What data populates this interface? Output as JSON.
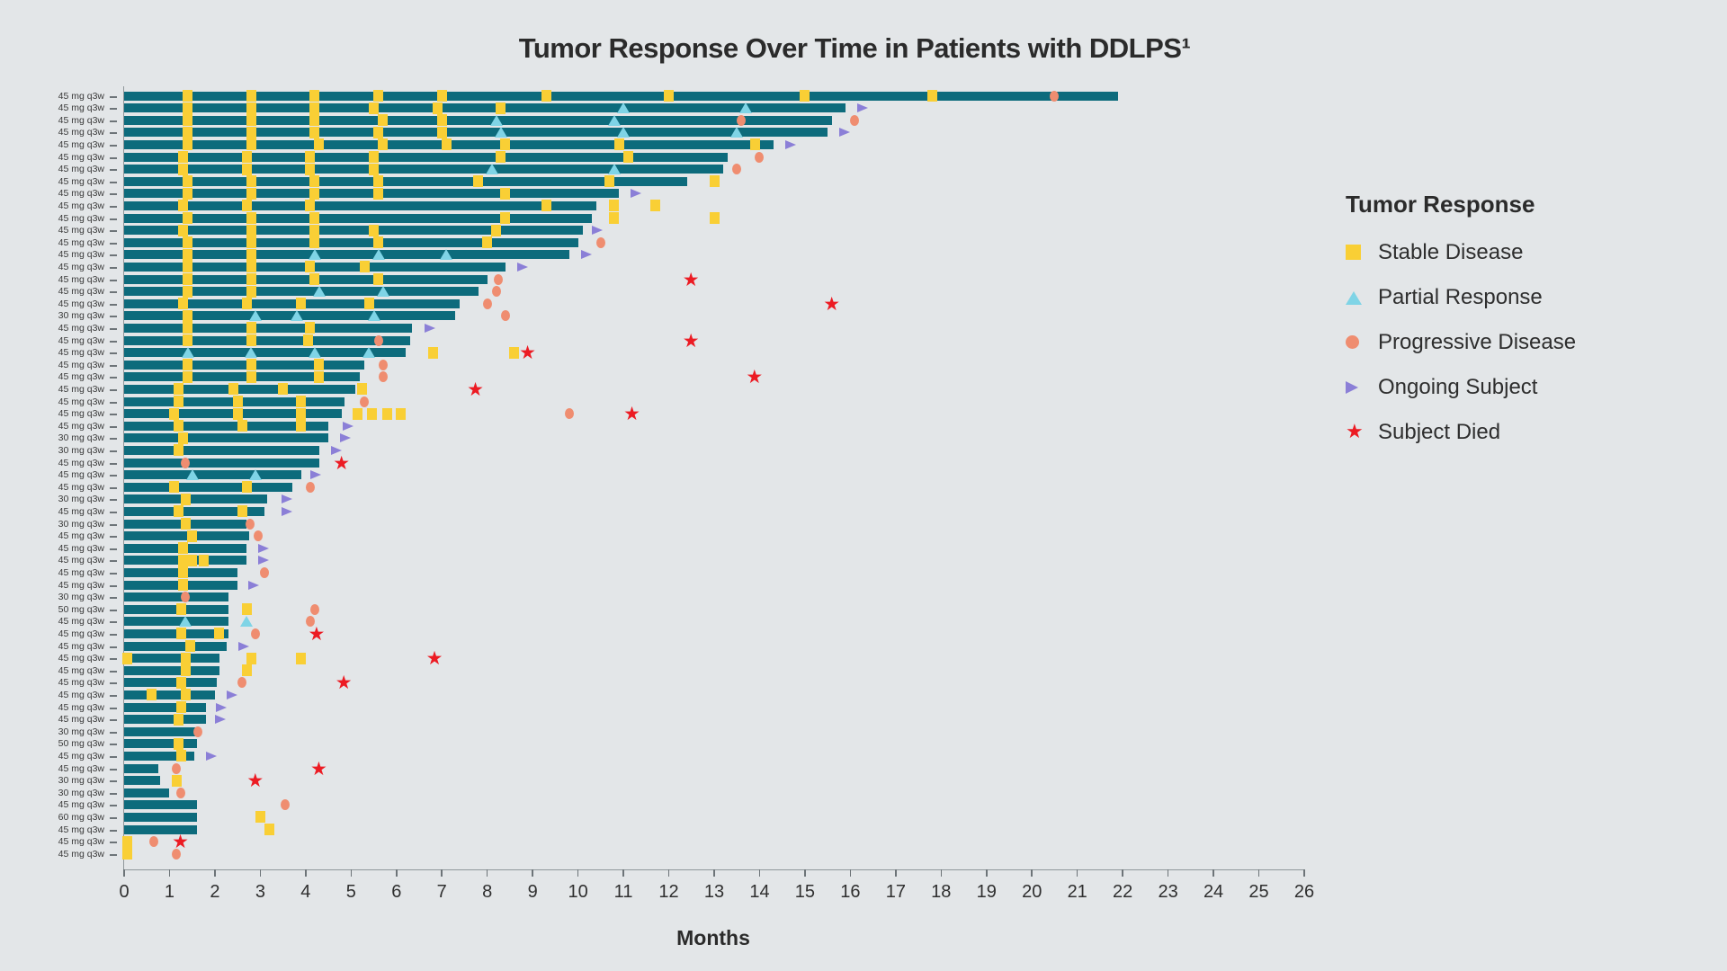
{
  "title": "Tumor Response Over Time in Patients with DDLPS¹",
  "x_axis": {
    "label": "Months",
    "ticks": [
      0,
      1,
      2,
      3,
      4,
      5,
      6,
      7,
      8,
      9,
      10,
      11,
      12,
      13,
      14,
      15,
      16,
      17,
      18,
      19,
      20,
      21,
      22,
      23,
      24,
      25,
      26
    ]
  },
  "legend": {
    "title": "Tumor Response",
    "items": [
      {
        "label": "Stable Disease",
        "marker": "square-icon",
        "color": "#f9cf35"
      },
      {
        "label": "Partial Response",
        "marker": "triangle-icon",
        "color": "#7fd4e6"
      },
      {
        "label": "Progressive Disease",
        "marker": "circle-icon",
        "color": "#ef8d70"
      },
      {
        "label": "Ongoing Subject",
        "marker": "arrow-icon",
        "color": "#8b7fd7"
      },
      {
        "label": "Subject Died",
        "marker": "star-icon",
        "color": "#ec1b23"
      }
    ]
  },
  "colors": {
    "background": "#e3e6e8",
    "bar": "#0d6b7c",
    "stable_disease": "#f9cf35",
    "partial_response": "#7fd4e6",
    "progressive_disease": "#ef8d70",
    "ongoing": "#8b7fd7",
    "died": "#ec1b23"
  },
  "chart_data": {
    "type": "swimmer-bar",
    "unit": "months",
    "xlim": [
      0,
      26
    ],
    "title": "Tumor Response Over Time in Patients with DDLPS¹",
    "xlabel": "Months",
    "legend_position": "right",
    "patients": [
      {
        "dose": "45 mg q3w",
        "end": 21.9,
        "sd": [
          1.4,
          2.8,
          4.2,
          5.6,
          7.0,
          9.3,
          12.0,
          15.0,
          17.8
        ],
        "pr": [],
        "pd": [
          20.5
        ],
        "ongoing": null,
        "died": null
      },
      {
        "dose": "45 mg q3w",
        "end": 15.9,
        "sd": [
          1.4,
          2.8,
          4.2,
          5.5,
          6.9,
          8.3
        ],
        "pr": [
          11.0,
          13.7
        ],
        "pd": [],
        "ongoing": 16.2,
        "died": null
      },
      {
        "dose": "45 mg q3w",
        "end": 15.6,
        "sd": [
          1.4,
          2.8,
          4.2,
          5.7,
          7.0
        ],
        "pr": [
          8.2,
          10.8
        ],
        "pd": [
          13.6,
          16.1
        ],
        "ongoing": null,
        "died": null
      },
      {
        "dose": "45 mg q3w",
        "end": 15.5,
        "sd": [
          1.4,
          2.8,
          4.2,
          5.6,
          7.0
        ],
        "pr": [
          8.3,
          11.0,
          13.5
        ],
        "pd": [],
        "ongoing": 15.8,
        "died": null
      },
      {
        "dose": "45 mg q3w",
        "end": 14.3,
        "sd": [
          1.4,
          2.8,
          4.3,
          5.7,
          7.1,
          8.4,
          10.9,
          13.9
        ],
        "pr": [],
        "pd": [],
        "ongoing": 14.6,
        "died": null
      },
      {
        "dose": "45 mg q3w",
        "end": 13.3,
        "sd": [
          1.3,
          2.7,
          4.1,
          5.5,
          8.3,
          11.1
        ],
        "pr": [],
        "pd": [
          14.0
        ],
        "ongoing": null,
        "died": null
      },
      {
        "dose": "45 mg q3w",
        "end": 13.2,
        "sd": [
          1.3,
          2.7,
          4.1,
          5.5
        ],
        "pr": [
          8.1,
          10.8
        ],
        "pd": [
          13.5
        ],
        "ongoing": null,
        "died": null
      },
      {
        "dose": "45 mg q3w",
        "end": 12.4,
        "sd": [
          1.4,
          2.8,
          4.2,
          5.6,
          7.8,
          10.7,
          13.0
        ],
        "pr": [],
        "pd": [],
        "ongoing": null,
        "died": null
      },
      {
        "dose": "45 mg q3w",
        "end": 10.9,
        "sd": [
          1.4,
          2.8,
          4.2,
          5.6,
          8.4
        ],
        "pr": [],
        "pd": [],
        "ongoing": 11.2,
        "died": null
      },
      {
        "dose": "45 mg q3w",
        "end": 10.4,
        "sd": [
          1.3,
          2.7,
          4.1,
          9.3,
          10.8,
          11.7
        ],
        "pr": [],
        "pd": [],
        "ongoing": null,
        "died": null
      },
      {
        "dose": "45 mg q3w",
        "end": 10.3,
        "sd": [
          1.4,
          2.8,
          4.2,
          8.4,
          10.8,
          13.0
        ],
        "pr": [],
        "pd": [],
        "ongoing": null,
        "died": null
      },
      {
        "dose": "45 mg q3w",
        "end": 10.1,
        "sd": [
          1.3,
          2.8,
          4.2,
          5.5,
          8.2
        ],
        "pr": [],
        "pd": [],
        "ongoing": 10.35,
        "died": null
      },
      {
        "dose": "45 mg q3w",
        "end": 10.0,
        "sd": [
          1.4,
          2.8,
          4.2,
          5.6,
          8.0
        ],
        "pr": [],
        "pd": [
          10.5
        ],
        "ongoing": null,
        "died": null
      },
      {
        "dose": "45 mg q3w",
        "end": 9.8,
        "sd": [
          1.4,
          2.8
        ],
        "pr": [
          4.2,
          5.6,
          7.1
        ],
        "pd": [],
        "ongoing": 10.1,
        "died": null
      },
      {
        "dose": "45 mg q3w",
        "end": 8.4,
        "sd": [
          1.4,
          2.8,
          4.1,
          5.3
        ],
        "pr": [],
        "pd": [],
        "ongoing": 8.7,
        "died": null
      },
      {
        "dose": "45 mg q3w",
        "end": 8.0,
        "sd": [
          1.4,
          2.8,
          4.2,
          5.6
        ],
        "pr": [],
        "pd": [
          8.25
        ],
        "ongoing": null,
        "died": 12.5
      },
      {
        "dose": "45 mg q3w",
        "end": 7.8,
        "sd": [
          1.4,
          2.8
        ],
        "pr": [
          4.3,
          5.7
        ],
        "pd": [
          8.2
        ],
        "ongoing": null,
        "died": null
      },
      {
        "dose": "45 mg q3w",
        "end": 7.4,
        "sd": [
          1.3,
          2.7,
          3.9,
          5.4
        ],
        "pr": [],
        "pd": [
          8.0
        ],
        "ongoing": null,
        "died": 15.6
      },
      {
        "dose": "30 mg q3w",
        "end": 7.3,
        "sd": [
          1.4
        ],
        "pr": [
          2.9,
          3.8,
          5.5
        ],
        "pd": [
          8.4
        ],
        "ongoing": null,
        "died": null
      },
      {
        "dose": "45 mg q3w",
        "end": 6.35,
        "sd": [
          1.4,
          2.8,
          4.1
        ],
        "pr": [],
        "pd": [],
        "ongoing": 6.65,
        "died": null
      },
      {
        "dose": "45 mg q3w",
        "end": 6.3,
        "sd": [
          1.4,
          2.8,
          4.05
        ],
        "pr": [],
        "pd": [
          5.6
        ],
        "ongoing": null,
        "died": 12.5
      },
      {
        "dose": "45 mg q3w",
        "end": 6.2,
        "sd": [
          6.8,
          8.6
        ],
        "pr": [
          1.4,
          2.8,
          4.2,
          5.4
        ],
        "pd": [],
        "ongoing": null,
        "died": 8.9
      },
      {
        "dose": "45 mg q3w",
        "end": 5.3,
        "sd": [
          1.4,
          2.8,
          4.3
        ],
        "pr": [],
        "pd": [
          5.7
        ],
        "ongoing": null,
        "died": null
      },
      {
        "dose": "45 mg q3w",
        "end": 5.2,
        "sd": [
          1.4,
          2.8,
          4.3
        ],
        "pr": [],
        "pd": [
          5.7
        ],
        "ongoing": null,
        "died": 13.9
      },
      {
        "dose": "45 mg q3w",
        "end": 5.1,
        "sd": [
          1.2,
          2.4,
          3.5,
          5.25
        ],
        "pr": [],
        "pd": [],
        "ongoing": null,
        "died": 7.75
      },
      {
        "dose": "45 mg q3w",
        "end": 4.85,
        "sd": [
          1.2,
          2.5,
          3.9
        ],
        "pr": [],
        "pd": [
          5.3
        ],
        "ongoing": null,
        "died": null
      },
      {
        "dose": "45 mg q3w",
        "end": 4.8,
        "sd": [
          1.1,
          2.5,
          3.9,
          5.15,
          5.45,
          5.8,
          6.1
        ],
        "pr": [],
        "pd": [
          9.8
        ],
        "ongoing": null,
        "died": 11.2
      },
      {
        "dose": "45 mg q3w",
        "end": 4.5,
        "sd": [
          1.2,
          2.6,
          3.9
        ],
        "pr": [],
        "pd": [],
        "ongoing": 4.85,
        "died": null
      },
      {
        "dose": "30 mg q3w",
        "end": 4.5,
        "sd": [
          1.3
        ],
        "pr": [],
        "pd": [],
        "ongoing": 4.8,
        "died": null
      },
      {
        "dose": "30 mg q3w",
        "end": 4.3,
        "sd": [
          1.2
        ],
        "pr": [],
        "pd": [],
        "ongoing": 4.6,
        "died": null
      },
      {
        "dose": "45 mg q3w",
        "end": 4.3,
        "sd": [],
        "pr": [],
        "pd": [
          1.35
        ],
        "ongoing": null,
        "died": 4.8
      },
      {
        "dose": "45 mg q3w",
        "end": 3.9,
        "sd": [],
        "pr": [
          1.5,
          2.9
        ],
        "pd": [],
        "ongoing": 4.15,
        "died": null
      },
      {
        "dose": "45 mg q3w",
        "end": 3.7,
        "sd": [
          1.1,
          2.7
        ],
        "pr": [],
        "pd": [
          4.1
        ],
        "ongoing": null,
        "died": null
      },
      {
        "dose": "30 mg q3w",
        "end": 3.15,
        "sd": [
          1.35
        ],
        "pr": [],
        "pd": [],
        "ongoing": 3.5,
        "died": null
      },
      {
        "dose": "45 mg q3w",
        "end": 3.1,
        "sd": [
          1.2,
          2.6
        ],
        "pr": [],
        "pd": [],
        "ongoing": 3.5,
        "died": null
      },
      {
        "dose": "30 mg q3w",
        "end": 2.7,
        "sd": [
          1.35
        ],
        "pr": [],
        "pd": [
          2.78
        ],
        "ongoing": null,
        "died": null
      },
      {
        "dose": "45 mg q3w",
        "end": 2.75,
        "sd": [
          1.5
        ],
        "pr": [],
        "pd": [
          2.95
        ],
        "ongoing": null,
        "died": null
      },
      {
        "dose": "45 mg q3w",
        "end": 2.7,
        "sd": [
          1.3
        ],
        "pr": [],
        "pd": [],
        "ongoing": 3.0,
        "died": null
      },
      {
        "dose": "45 mg q3w",
        "end": 2.7,
        "sd": [
          1.3,
          1.5,
          1.75
        ],
        "pr": [],
        "pd": [],
        "ongoing": 3.0,
        "died": null
      },
      {
        "dose": "45 mg q3w",
        "end": 2.5,
        "sd": [
          1.3
        ],
        "pr": [],
        "pd": [
          3.1
        ],
        "ongoing": null,
        "died": null
      },
      {
        "dose": "45 mg q3w",
        "end": 2.5,
        "sd": [
          1.3
        ],
        "pr": [],
        "pd": [],
        "ongoing": 2.78,
        "died": null
      },
      {
        "dose": "30 mg q3w",
        "end": 2.3,
        "sd": [],
        "pr": [],
        "pd": [
          1.35
        ],
        "ongoing": null,
        "died": null
      },
      {
        "dose": "50 mg q3w",
        "end": 2.3,
        "sd": [
          1.25,
          2.7
        ],
        "pr": [],
        "pd": [
          4.2
        ],
        "ongoing": null,
        "died": null
      },
      {
        "dose": "45 mg q3w",
        "end": 2.3,
        "sd": [],
        "pr": [
          1.35,
          2.7
        ],
        "pd": [
          4.1
        ],
        "ongoing": null,
        "died": null
      },
      {
        "dose": "45 mg q3w",
        "end": 2.3,
        "sd": [
          1.25,
          2.1
        ],
        "pr": [],
        "pd": [
          2.9
        ],
        "ongoing": null,
        "died": 4.25
      },
      {
        "dose": "45 mg q3w",
        "end": 2.25,
        "sd": [
          1.45
        ],
        "pr": [],
        "pd": [],
        "ongoing": 2.55,
        "died": null
      },
      {
        "dose": "45 mg q3w",
        "end": 2.1,
        "sd": [
          0.06,
          1.35,
          2.8,
          3.9
        ],
        "pr": [],
        "pd": [],
        "ongoing": null,
        "died": 6.85
      },
      {
        "dose": "45 mg q3w",
        "end": 2.1,
        "sd": [
          1.35,
          2.7
        ],
        "pr": [],
        "pd": [],
        "ongoing": null,
        "died": null
      },
      {
        "dose": "45 mg q3w",
        "end": 2.05,
        "sd": [
          1.25
        ],
        "pr": [],
        "pd": [
          2.6
        ],
        "ongoing": null,
        "died": 4.85
      },
      {
        "dose": "45 mg q3w",
        "end": 2.0,
        "sd": [
          0.6,
          1.35
        ],
        "pr": [],
        "pd": [],
        "ongoing": 2.3,
        "died": null
      },
      {
        "dose": "45 mg q3w",
        "end": 1.8,
        "sd": [
          1.25
        ],
        "pr": [],
        "pd": [],
        "ongoing": 2.07,
        "died": null
      },
      {
        "dose": "45 mg q3w",
        "end": 1.8,
        "sd": [
          1.2
        ],
        "pr": [],
        "pd": [],
        "ongoing": 2.05,
        "died": null
      },
      {
        "dose": "30 mg q3w",
        "end": 1.6,
        "sd": [],
        "pr": [],
        "pd": [
          1.62
        ],
        "ongoing": null,
        "died": null
      },
      {
        "dose": "50 mg q3w",
        "end": 1.6,
        "sd": [
          1.2
        ],
        "pr": [],
        "pd": [],
        "ongoing": null,
        "died": null
      },
      {
        "dose": "45 mg q3w",
        "end": 1.55,
        "sd": [
          1.25
        ],
        "pr": [],
        "pd": [],
        "ongoing": 1.85,
        "died": null
      },
      {
        "dose": "45 mg q3w",
        "end": 0.75,
        "sd": [],
        "pr": [],
        "pd": [
          1.15
        ],
        "ongoing": null,
        "died": 4.3
      },
      {
        "dose": "30 mg q3w",
        "end": 0.8,
        "sd": [
          1.15
        ],
        "pr": [],
        "pd": [],
        "ongoing": null,
        "died": 2.9
      },
      {
        "dose": "30 mg q3w",
        "end": 1.0,
        "sd": [],
        "pr": [],
        "pd": [
          1.25
        ],
        "ongoing": null,
        "died": null
      },
      {
        "dose": "45 mg q3w",
        "end": 1.6,
        "sd": [],
        "pr": [],
        "pd": [
          3.55
        ],
        "ongoing": null,
        "died": null
      },
      {
        "dose": "60 mg q3w",
        "end": 1.6,
        "sd": [
          3.0
        ],
        "pr": [],
        "pd": [],
        "ongoing": null,
        "died": null
      },
      {
        "dose": "45 mg q3w",
        "end": 1.6,
        "sd": [
          3.2
        ],
        "pr": [],
        "pd": [],
        "ongoing": null,
        "died": null
      },
      {
        "dose": "45 mg q3w",
        "end": 0.1,
        "sd": [
          0.06
        ],
        "pr": [],
        "pd": [
          0.65
        ],
        "ongoing": null,
        "died": 1.25
      },
      {
        "dose": "45 mg q3w",
        "end": 0.1,
        "sd": [
          0.06
        ],
        "pr": [],
        "pd": [
          1.15
        ],
        "ongoing": null,
        "died": null
      }
    ]
  }
}
